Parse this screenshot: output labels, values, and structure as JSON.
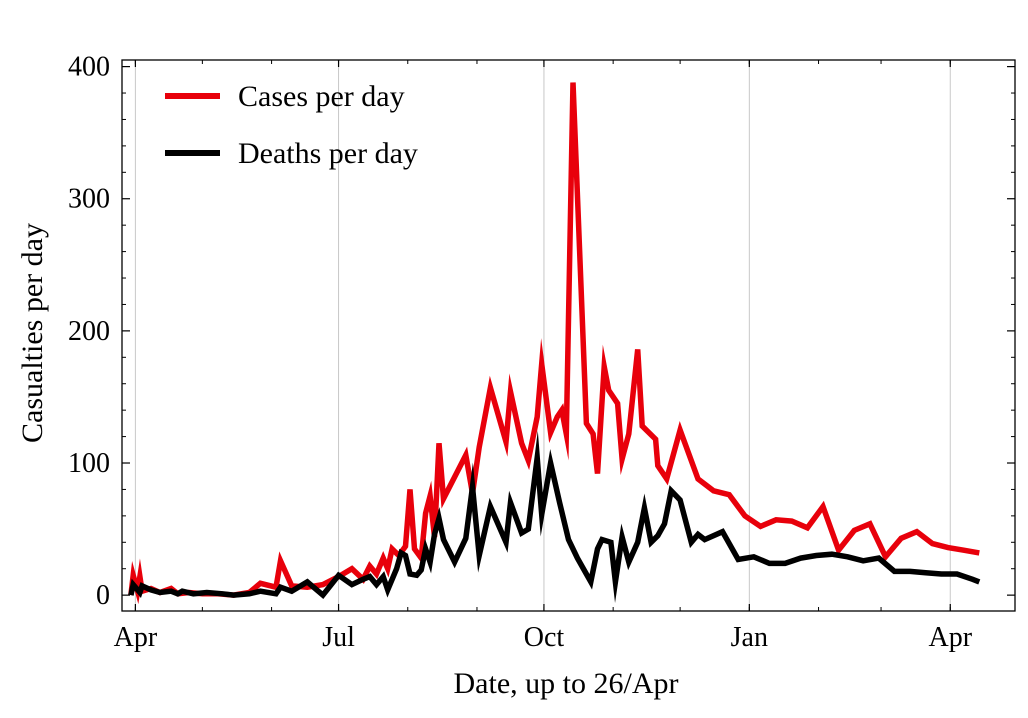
{
  "chart_data": {
    "type": "line",
    "xlabel": "Date, up to 26/Apr",
    "ylabel": "Casualties per day",
    "x_axis": {
      "type": "date",
      "range": [
        "2020-03-26",
        "2021-04-30"
      ],
      "ticks": [
        {
          "date": "2020-04-01",
          "label": "Apr"
        },
        {
          "date": "2020-07-01",
          "label": "Jul"
        },
        {
          "date": "2020-10-01",
          "label": "Oct"
        },
        {
          "date": "2021-01-01",
          "label": "Jan"
        },
        {
          "date": "2021-04-01",
          "label": "Apr"
        }
      ]
    },
    "y_axis": {
      "range": [
        -12,
        405
      ],
      "ticks": [
        0,
        100,
        200,
        300,
        400
      ]
    },
    "grid": {
      "vertical": true,
      "horizontal": false
    },
    "legend": {
      "placement": "top-left"
    },
    "series": [
      {
        "name": "Cases per day",
        "color": "#e8000b",
        "points": [
          [
            "2020-03-30",
            0
          ],
          [
            "2020-03-31",
            15
          ],
          [
            "2020-04-02",
            3
          ],
          [
            "2020-04-03",
            14
          ],
          [
            "2020-04-04",
            3
          ],
          [
            "2020-04-08",
            5
          ],
          [
            "2020-04-12",
            2
          ],
          [
            "2020-04-17",
            5
          ],
          [
            "2020-04-20",
            1
          ],
          [
            "2020-04-25",
            2
          ],
          [
            "2020-05-01",
            1
          ],
          [
            "2020-05-08",
            1
          ],
          [
            "2020-05-15",
            0
          ],
          [
            "2020-05-22",
            2
          ],
          [
            "2020-05-27",
            9
          ],
          [
            "2020-06-03",
            6
          ],
          [
            "2020-06-05",
            26
          ],
          [
            "2020-06-10",
            7
          ],
          [
            "2020-06-17",
            6
          ],
          [
            "2020-06-24",
            8
          ],
          [
            "2020-07-01",
            14
          ],
          [
            "2020-07-07",
            20
          ],
          [
            "2020-07-12",
            12
          ],
          [
            "2020-07-15",
            22
          ],
          [
            "2020-07-18",
            16
          ],
          [
            "2020-07-21",
            28
          ],
          [
            "2020-07-23",
            20
          ],
          [
            "2020-07-25",
            35
          ],
          [
            "2020-07-28",
            30
          ],
          [
            "2020-07-31",
            37
          ],
          [
            "2020-08-02",
            80
          ],
          [
            "2020-08-04",
            35
          ],
          [
            "2020-08-07",
            28
          ],
          [
            "2020-08-09",
            62
          ],
          [
            "2020-08-11",
            75
          ],
          [
            "2020-08-13",
            44
          ],
          [
            "2020-08-15",
            115
          ],
          [
            "2020-08-17",
            73
          ],
          [
            "2020-08-27",
            106
          ],
          [
            "2020-08-30",
            77
          ],
          [
            "2020-09-02",
            112
          ],
          [
            "2020-09-07",
            157
          ],
          [
            "2020-09-14",
            116
          ],
          [
            "2020-09-16",
            154
          ],
          [
            "2020-09-21",
            115
          ],
          [
            "2020-09-24",
            102
          ],
          [
            "2020-09-28",
            135
          ],
          [
            "2020-09-30",
            175
          ],
          [
            "2020-10-04",
            123
          ],
          [
            "2020-10-07",
            135
          ],
          [
            "2020-10-09",
            140
          ],
          [
            "2020-10-11",
            122
          ],
          [
            "2020-10-14",
            388
          ],
          [
            "2020-10-20",
            130
          ],
          [
            "2020-10-23",
            122
          ],
          [
            "2020-10-25",
            92
          ],
          [
            "2020-10-28",
            173
          ],
          [
            "2020-10-30",
            155
          ],
          [
            "2020-11-03",
            145
          ],
          [
            "2020-11-05",
            103
          ],
          [
            "2020-11-08",
            122
          ],
          [
            "2020-11-12",
            186
          ],
          [
            "2020-11-14",
            128
          ],
          [
            "2020-11-20",
            118
          ],
          [
            "2020-11-21",
            98
          ],
          [
            "2020-11-25",
            88
          ],
          [
            "2020-12-01",
            125
          ],
          [
            "2020-12-09",
            88
          ],
          [
            "2020-12-16",
            79
          ],
          [
            "2020-12-23",
            76
          ],
          [
            "2020-12-30",
            60
          ],
          [
            "2021-01-06",
            52
          ],
          [
            "2021-01-13",
            57
          ],
          [
            "2021-01-20",
            56
          ],
          [
            "2021-01-27",
            51
          ],
          [
            "2021-02-03",
            67
          ],
          [
            "2021-02-10",
            34
          ],
          [
            "2021-02-17",
            49
          ],
          [
            "2021-02-24",
            54
          ],
          [
            "2021-03-03",
            29
          ],
          [
            "2021-03-10",
            43
          ],
          [
            "2021-03-17",
            48
          ],
          [
            "2021-03-24",
            39
          ],
          [
            "2021-03-31",
            36
          ],
          [
            "2021-04-07",
            34
          ],
          [
            "2021-04-14",
            32
          ]
        ]
      },
      {
        "name": "Deaths per day",
        "color": "#000000",
        "points": [
          [
            "2020-03-30",
            0
          ],
          [
            "2020-03-31",
            8
          ],
          [
            "2020-04-03",
            2
          ],
          [
            "2020-04-04",
            7
          ],
          [
            "2020-04-08",
            4
          ],
          [
            "2020-04-12",
            2
          ],
          [
            "2020-04-17",
            3
          ],
          [
            "2020-04-20",
            1
          ],
          [
            "2020-04-22",
            3
          ],
          [
            "2020-04-27",
            1
          ],
          [
            "2020-05-03",
            2
          ],
          [
            "2020-05-10",
            1
          ],
          [
            "2020-05-15",
            0
          ],
          [
            "2020-05-22",
            1
          ],
          [
            "2020-05-27",
            3
          ],
          [
            "2020-06-03",
            1
          ],
          [
            "2020-06-05",
            6
          ],
          [
            "2020-06-10",
            3
          ],
          [
            "2020-06-17",
            10
          ],
          [
            "2020-06-24",
            0
          ],
          [
            "2020-07-01",
            15
          ],
          [
            "2020-07-07",
            8
          ],
          [
            "2020-07-12",
            12
          ],
          [
            "2020-07-15",
            14
          ],
          [
            "2020-07-18",
            8
          ],
          [
            "2020-07-21",
            14
          ],
          [
            "2020-07-23",
            4
          ],
          [
            "2020-07-27",
            20
          ],
          [
            "2020-07-29",
            32
          ],
          [
            "2020-07-31",
            30
          ],
          [
            "2020-08-02",
            16
          ],
          [
            "2020-08-05",
            15
          ],
          [
            "2020-08-07",
            19
          ],
          [
            "2020-08-09",
            35
          ],
          [
            "2020-08-11",
            25
          ],
          [
            "2020-08-13",
            46
          ],
          [
            "2020-08-15",
            58
          ],
          [
            "2020-08-17",
            42
          ],
          [
            "2020-08-22",
            25
          ],
          [
            "2020-08-27",
            43
          ],
          [
            "2020-08-30",
            82
          ],
          [
            "2020-09-02",
            30
          ],
          [
            "2020-09-07",
            67
          ],
          [
            "2020-09-14",
            40
          ],
          [
            "2020-09-16",
            70
          ],
          [
            "2020-09-21",
            47
          ],
          [
            "2020-09-24",
            50
          ],
          [
            "2020-09-28",
            104
          ],
          [
            "2020-09-30",
            61
          ],
          [
            "2020-10-04",
            100
          ],
          [
            "2020-10-08",
            70
          ],
          [
            "2020-10-12",
            42
          ],
          [
            "2020-10-16",
            28
          ],
          [
            "2020-10-22",
            10
          ],
          [
            "2020-10-25",
            35
          ],
          [
            "2020-10-27",
            42
          ],
          [
            "2020-10-31",
            40
          ],
          [
            "2020-11-02",
            10
          ],
          [
            "2020-11-05",
            44
          ],
          [
            "2020-11-08",
            25
          ],
          [
            "2020-11-12",
            40
          ],
          [
            "2020-11-15",
            66
          ],
          [
            "2020-11-18",
            40
          ],
          [
            "2020-11-21",
            45
          ],
          [
            "2020-11-24",
            54
          ],
          [
            "2020-11-27",
            79
          ],
          [
            "2020-12-01",
            72
          ],
          [
            "2020-12-06",
            40
          ],
          [
            "2020-12-09",
            46
          ],
          [
            "2020-12-12",
            42
          ],
          [
            "2020-12-20",
            48
          ],
          [
            "2020-12-27",
            27
          ],
          [
            "2021-01-03",
            29
          ],
          [
            "2021-01-10",
            24
          ],
          [
            "2021-01-17",
            24
          ],
          [
            "2021-01-24",
            28
          ],
          [
            "2021-01-31",
            30
          ],
          [
            "2021-02-07",
            31
          ],
          [
            "2021-02-14",
            29
          ],
          [
            "2021-02-21",
            26
          ],
          [
            "2021-02-28",
            28
          ],
          [
            "2021-03-07",
            18
          ],
          [
            "2021-03-14",
            18
          ],
          [
            "2021-03-21",
            17
          ],
          [
            "2021-03-28",
            16
          ],
          [
            "2021-04-04",
            16
          ],
          [
            "2021-04-11",
            12
          ],
          [
            "2021-04-14",
            10
          ]
        ]
      }
    ]
  }
}
